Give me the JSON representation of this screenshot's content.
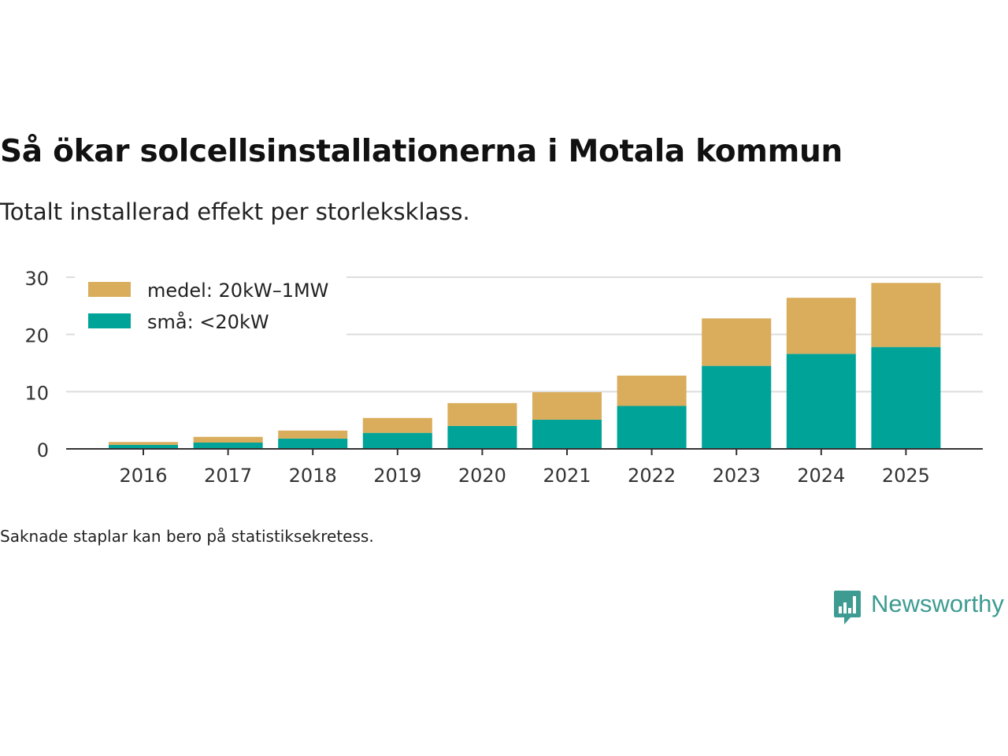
{
  "title": "Så ökar solcellsinstallationerna i Motala kommun",
  "subtitle": "Totalt installerad effekt per storleksklass.",
  "footnote": "Saknade staplar kan bero på statistiksekretess.",
  "brand": {
    "name": "Newsworthy",
    "color": "#3d9b91",
    "icon": "newsworthy-chart-icon"
  },
  "colors": {
    "medel": "#d9ad5b",
    "sma": "#00a398",
    "grid": "#dddddd",
    "axis": "#333333"
  },
  "chart_data": {
    "type": "bar",
    "stacked": true,
    "title": "Så ökar solcellsinstallationerna i Motala kommun",
    "subtitle": "Totalt installerad effekt per storleksklass.",
    "xlabel": "",
    "ylabel": "",
    "ylim": [
      0,
      30
    ],
    "yticks": [
      0,
      10,
      20,
      30
    ],
    "grid": true,
    "legend_position": "top-left",
    "categories": [
      "2016",
      "2017",
      "2018",
      "2019",
      "2020",
      "2021",
      "2022",
      "2023",
      "2024",
      "2025"
    ],
    "series": [
      {
        "name": "små: <20kW",
        "key": "sma",
        "values": [
          0.7,
          1.1,
          1.8,
          2.8,
          4.0,
          5.1,
          7.5,
          14.5,
          16.6,
          17.8
        ]
      },
      {
        "name": "medel: 20kW–1MW",
        "key": "medel",
        "values": [
          0.5,
          1.0,
          1.4,
          2.6,
          4.0,
          4.8,
          5.3,
          8.3,
          9.8,
          11.2
        ]
      }
    ],
    "legend": [
      {
        "label": "medel: 20kW–1MW",
        "key": "medel"
      },
      {
        "label": "små: <20kW",
        "key": "sma"
      }
    ]
  }
}
